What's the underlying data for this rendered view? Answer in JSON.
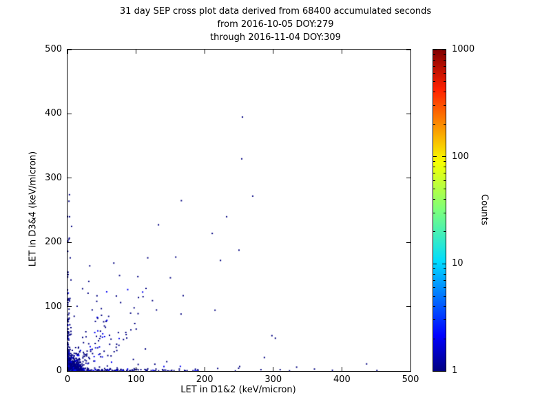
{
  "chart_data": {
    "type": "scatter",
    "title": "31 day SEP cross plot data derived from 68400 accumulated seconds",
    "subtitle1": "from 2016-10-05 DOY:279",
    "subtitle2": "through 2016-11-04 DOY:309",
    "xlabel": "LET in D1&2 (keV/micron)",
    "ylabel": "LET in D3&4 (keV/micron)",
    "xlim": [
      0,
      500
    ],
    "ylim": [
      0,
      500
    ],
    "x_ticks": [
      0,
      100,
      200,
      300,
      400,
      500
    ],
    "y_ticks": [
      0,
      100,
      200,
      300,
      400,
      500
    ],
    "grid": false,
    "colorbar": {
      "label": "Counts",
      "scale": "log",
      "min": 1,
      "max": 1000,
      "ticks": [
        1,
        10,
        100,
        1000
      ],
      "colormap": "jet"
    },
    "colormap_stops": [
      [
        0.0,
        [
          0,
          0,
          128
        ]
      ],
      [
        0.11,
        [
          0,
          0,
          255
        ]
      ],
      [
        0.34,
        [
          0,
          220,
          255
        ]
      ],
      [
        0.5,
        [
          124,
          255,
          124
        ]
      ],
      [
        0.65,
        [
          247,
          255,
          0
        ]
      ],
      [
        0.875,
        [
          255,
          33,
          0
        ]
      ],
      [
        1.0,
        [
          128,
          0,
          0
        ]
      ]
    ],
    "points": [
      [
        255,
        395,
        1
      ],
      [
        270,
        272,
        1
      ],
      [
        232,
        240,
        1
      ],
      [
        166,
        265,
        1
      ],
      [
        254,
        330,
        1
      ],
      [
        211,
        214,
        1
      ],
      [
        250,
        188,
        1
      ],
      [
        223,
        172,
        1
      ],
      [
        150,
        145,
        1
      ],
      [
        117,
        176,
        1
      ],
      [
        298,
        55,
        1
      ],
      [
        303,
        51,
        1
      ],
      [
        287,
        21,
        1
      ],
      [
        334,
        6,
        1
      ],
      [
        436,
        11,
        1
      ],
      [
        360,
        3,
        1
      ],
      [
        251,
        7,
        1
      ],
      [
        219,
        4,
        1
      ],
      [
        190,
        2,
        1
      ],
      [
        163,
        3,
        1
      ],
      [
        129,
        3,
        1
      ],
      [
        107,
        2,
        1
      ],
      [
        282,
        2,
        1
      ],
      [
        310,
        2,
        1
      ],
      [
        22,
        128,
        1
      ],
      [
        30,
        121,
        1
      ],
      [
        43,
        117,
        1
      ],
      [
        36,
        95,
        1
      ],
      [
        3,
        240,
        1
      ],
      [
        6,
        225,
        1
      ],
      [
        2,
        205,
        1
      ],
      [
        4,
        176,
        1
      ],
      [
        1,
        150,
        1
      ],
      [
        92,
        90,
        1
      ],
      [
        85,
        60,
        1
      ],
      [
        60,
        85,
        1
      ],
      [
        96,
        18,
        1
      ],
      [
        75,
        40,
        1
      ],
      [
        48,
        62,
        1
      ],
      [
        68,
        30,
        1
      ]
    ],
    "clusters": [
      {
        "name": "core-dense-origin",
        "seed": 11,
        "n": 900,
        "sx": 6,
        "sy": 6,
        "count_boost": true
      },
      {
        "name": "bottom-edge-strip",
        "seed": 22,
        "n": 160,
        "sx": 75,
        "sy": 1.6
      },
      {
        "name": "left-edge-strip",
        "seed": 33,
        "n": 100,
        "sx": 1.6,
        "sy": 60
      },
      {
        "name": "diagonal-fan",
        "seed": 44,
        "n": 150,
        "fan": 35
      },
      {
        "name": "sparse-mid",
        "seed": 55,
        "n": 28,
        "uniform": 170
      }
    ]
  }
}
